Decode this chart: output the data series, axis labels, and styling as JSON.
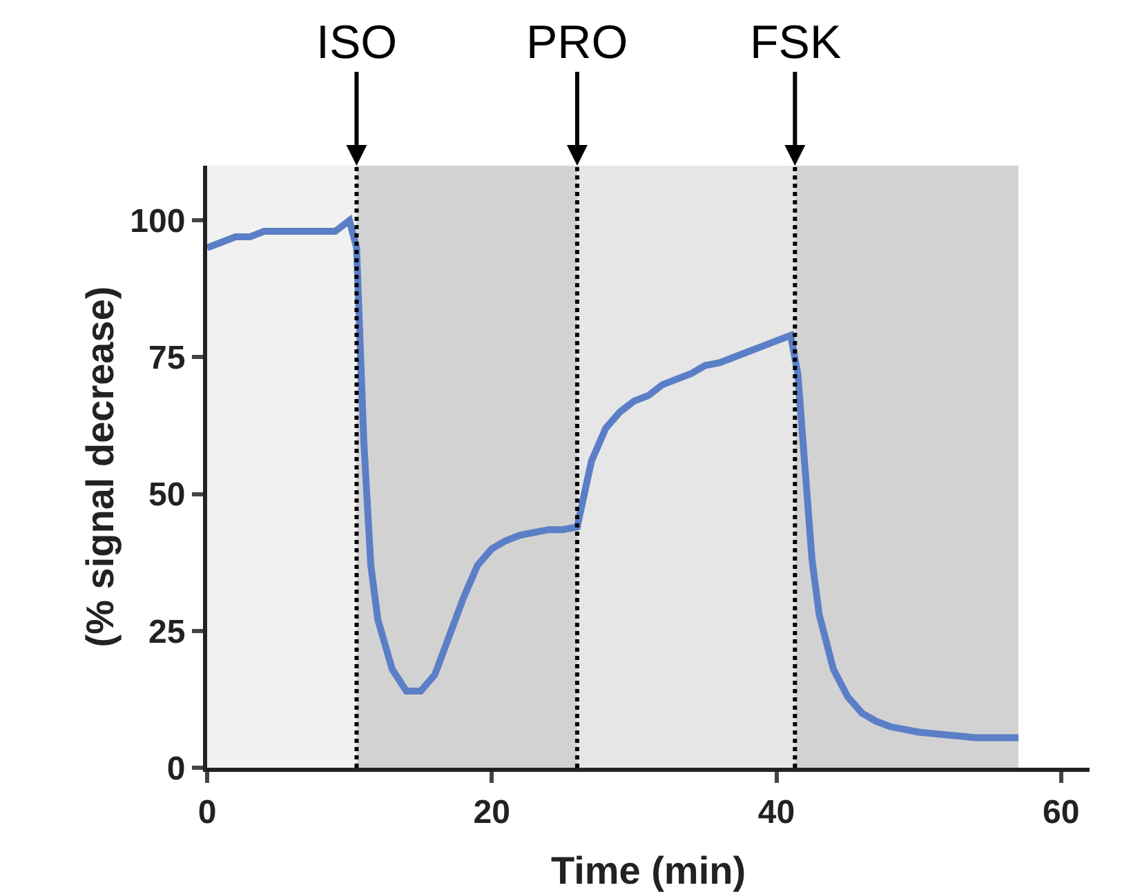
{
  "chart_data": {
    "type": "line",
    "xlabel": "Time (min)",
    "ylabel": "(% signal decrease)",
    "xlim": [
      0,
      62
    ],
    "xticks": [
      0,
      20,
      40,
      60
    ],
    "ylim": [
      0,
      110
    ],
    "yticks": [
      0,
      25,
      50,
      75,
      100
    ],
    "grid": false,
    "marker": "none",
    "line_style": "solid",
    "series": [
      {
        "color": "#5b7fc7",
        "x": [
          0,
          1,
          2,
          3,
          4,
          5,
          6,
          7,
          8,
          9,
          10,
          10.5,
          11,
          11.5,
          12,
          13,
          14,
          15,
          16,
          17,
          18,
          19,
          20,
          21,
          22,
          23,
          24,
          25,
          26,
          26.5,
          27,
          28,
          29,
          30,
          31,
          32,
          33,
          34,
          35,
          36,
          37,
          38,
          39,
          40,
          41,
          41.5,
          42,
          42.5,
          43,
          44,
          45,
          46,
          47,
          48,
          50,
          52,
          54,
          56,
          57
        ],
        "values": [
          95,
          96,
          97,
          97,
          98,
          98,
          98,
          98,
          98,
          98,
          100,
          95,
          60,
          37,
          27,
          18,
          14,
          14,
          17,
          24,
          31,
          37,
          40,
          41.5,
          42.5,
          43,
          43.5,
          43.5,
          44,
          50,
          56,
          62,
          65,
          67,
          68,
          70,
          71,
          72,
          73.5,
          74,
          75,
          76,
          77,
          78,
          79,
          72,
          55,
          38,
          28,
          18,
          13,
          10,
          8.5,
          7.5,
          6.5,
          6,
          5.5,
          5.5,
          5.5
        ]
      }
    ],
    "bands": [
      {
        "axis": "x",
        "from": 0,
        "to": 10.5,
        "color": "#f1f1f1"
      },
      {
        "axis": "x",
        "from": 10.5,
        "to": 26,
        "color": "#d3d2d3"
      },
      {
        "axis": "x",
        "from": 26,
        "to": 41.3,
        "color": "#e6e6e6"
      },
      {
        "axis": "x",
        "from": 41.3,
        "to": 57,
        "color": "#d3d2d3"
      }
    ],
    "ref_lines": [
      {
        "axis": "x",
        "value": 10.5,
        "label": "ISO",
        "color": "#000000",
        "line_style": "dotted"
      },
      {
        "axis": "x",
        "value": 26,
        "label": "PRO",
        "color": "#000000",
        "line_style": "dotted"
      },
      {
        "axis": "x",
        "value": 41.3,
        "label": "FSK",
        "color": "#000000",
        "line_style": "dotted"
      }
    ]
  }
}
